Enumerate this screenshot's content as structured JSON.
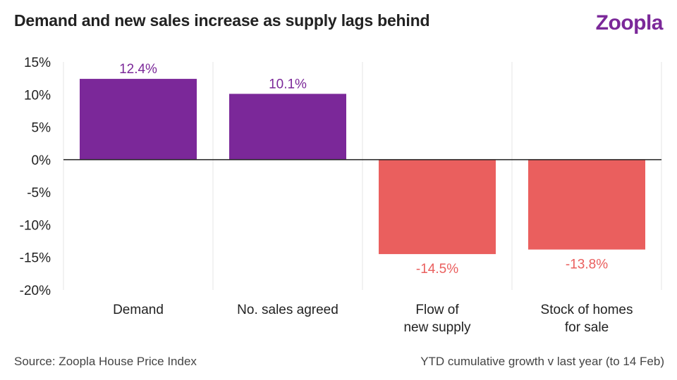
{
  "header": {
    "title": "Demand and new sales increase as supply lags behind",
    "brand": "Zoopla"
  },
  "footer": {
    "source": "Source: Zoopla House Price Index",
    "note": "YTD cumulative growth v last year (to 14 Feb)"
  },
  "colors": {
    "positive": "#7b2899",
    "negative": "#ea5f5e",
    "brand": "#7b2899",
    "grid": "#e4e4e4",
    "axis": "#222222"
  },
  "chart_data": {
    "type": "bar",
    "categories": [
      [
        "Demand"
      ],
      [
        "No. sales agreed"
      ],
      [
        "Flow of",
        "new supply"
      ],
      [
        "Stock of homes",
        "for sale"
      ]
    ],
    "values": [
      12.4,
      10.1,
      -14.5,
      -13.8
    ],
    "data_labels": [
      "12.4%",
      "10.1%",
      "-14.5%",
      "-13.8%"
    ],
    "ylim": [
      -20,
      15
    ],
    "yticks": [
      15,
      10,
      5,
      0,
      -5,
      -10,
      -15,
      -20
    ],
    "ytick_labels": [
      "15%",
      "10%",
      "5%",
      "0%",
      "-5%",
      "-10%",
      "-15%",
      "-20%"
    ],
    "grid": "vertical-separators"
  }
}
